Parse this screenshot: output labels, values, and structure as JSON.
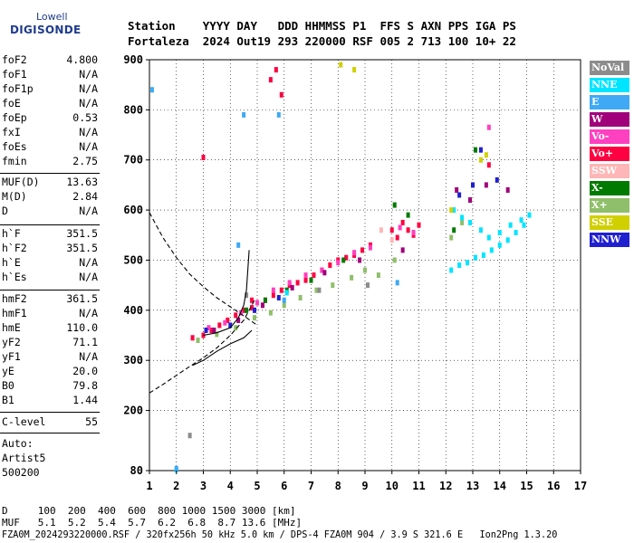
{
  "logo": {
    "brand_top": "Lowell",
    "brand_main": "DIGISONDE"
  },
  "header": {
    "row1": "Station    YYYY DAY   DDD HHMMSS P1  FFS S AXN PPS IGA PS",
    "row2": "Fortaleza  2024 Out19 293 220000 RSF 005 2 713 100 10+ 22"
  },
  "params_group1": [
    {
      "name": "foF2",
      "value": "4.800"
    },
    {
      "name": "foF1",
      "value": "N/A"
    },
    {
      "name": "foF1p",
      "value": "N/A"
    },
    {
      "name": "foE",
      "value": "N/A"
    },
    {
      "name": "foEp",
      "value": "0.53"
    },
    {
      "name": "fxI",
      "value": "N/A"
    },
    {
      "name": "foEs",
      "value": "N/A"
    },
    {
      "name": "fmin",
      "value": "2.75"
    }
  ],
  "params_group2": [
    {
      "name": "MUF(D)",
      "value": "13.63"
    },
    {
      "name": "M(D)",
      "value": "2.84"
    },
    {
      "name": "D",
      "value": "N/A"
    }
  ],
  "params_group3": [
    {
      "name": "h`F",
      "value": "351.5"
    },
    {
      "name": "h`F2",
      "value": "351.5"
    },
    {
      "name": "h`E",
      "value": "N/A"
    },
    {
      "name": "h`Es",
      "value": "N/A"
    }
  ],
  "params_group4": [
    {
      "name": "hmF2",
      "value": "361.5"
    },
    {
      "name": "hmF1",
      "value": "N/A"
    },
    {
      "name": "hmE",
      "value": "110.0"
    },
    {
      "name": "yF2",
      "value": "71.1"
    },
    {
      "name": "yF1",
      "value": "N/A"
    },
    {
      "name": "yE",
      "value": "20.0"
    },
    {
      "name": "B0",
      "value": "79.8"
    },
    {
      "name": "B1",
      "value": "1.44"
    }
  ],
  "params_group5": [
    {
      "name": "C-level",
      "value": "55"
    }
  ],
  "autoscale": {
    "line1": "Auto:",
    "line2": "Artist5",
    "line3": "500200"
  },
  "legend": [
    {
      "label": "NoVal",
      "color": "#8c8c8c"
    },
    {
      "label": "NNE",
      "color": "#00e5ff"
    },
    {
      "label": "E",
      "color": "#3fa9f5"
    },
    {
      "label": "W",
      "color": "#a0007a"
    },
    {
      "label": "Vo-",
      "color": "#ff40c0"
    },
    {
      "label": "Vo+",
      "color": "#ff0040"
    },
    {
      "label": "SSW",
      "color": "#ffb6b6"
    },
    {
      "label": "X-",
      "color": "#007a00"
    },
    {
      "label": "X+",
      "color": "#8fbf6a"
    },
    {
      "label": "SSE",
      "color": "#d0d000"
    },
    {
      "label": "NNW",
      "color": "#2020d0"
    }
  ],
  "footer": {
    "line1": "D     100  200  400  600  800 1000 1500 3000 [km]",
    "line2": "MUF   5.1  5.2  5.4  5.7  6.2  6.8  8.7 13.6 [MHz]",
    "line3": "FZA0M_2024293220000.RSF / 320fx256h 50 kHz 5.0 km / DPS-4 FZA0M 904 / 3.9 S 321.6 E   Ion2Png 1.3.20"
  },
  "chart_data": {
    "type": "scatter",
    "title": "",
    "xlabel": "",
    "ylabel": "",
    "xlim": [
      1,
      17
    ],
    "ylim": [
      80,
      900
    ],
    "x_ticks": [
      1,
      2,
      3,
      4,
      5,
      6,
      7,
      8,
      9,
      10,
      11,
      12,
      13,
      14,
      15,
      16,
      17
    ],
    "y_ticks": [
      80,
      200,
      300,
      400,
      500,
      600,
      700,
      800,
      900
    ],
    "grid": true,
    "legend_position": "right",
    "series": [
      {
        "name": "Vo+",
        "color": "#ff0040",
        "x": [
          2.6,
          3.0,
          3.3,
          3.6,
          3.9,
          4.2,
          4.5,
          4.8,
          5.0,
          5.3,
          5.6,
          5.9,
          6.2,
          6.5,
          6.8,
          7.1,
          7.4,
          7.7,
          8.0,
          8.3,
          8.6,
          8.9,
          9.2,
          10.0,
          10.2,
          10.4,
          10.6,
          10.8,
          11.0,
          5.5,
          5.7,
          5.9,
          3.0,
          4.8,
          13.6
        ],
        "y": [
          345,
          350,
          360,
          370,
          380,
          390,
          400,
          405,
          415,
          420,
          430,
          440,
          450,
          455,
          460,
          470,
          480,
          490,
          500,
          505,
          510,
          520,
          530,
          560,
          545,
          575,
          560,
          550,
          570,
          860,
          880,
          830,
          705,
          420,
          690
        ]
      },
      {
        "name": "Vo-",
        "color": "#ff40c0",
        "x": [
          3.2,
          3.8,
          4.4,
          5.0,
          5.6,
          6.2,
          6.8,
          7.4,
          8.0,
          8.6,
          9.2,
          10.3,
          10.8,
          13.6
        ],
        "y": [
          365,
          375,
          395,
          415,
          440,
          455,
          470,
          480,
          495,
          515,
          525,
          565,
          555,
          765
        ]
      },
      {
        "name": "X+",
        "color": "#8fbf6a",
        "x": [
          2.8,
          3.5,
          4.2,
          4.9,
          5.5,
          6.0,
          6.6,
          7.2,
          7.8,
          8.5,
          9.0,
          9.5,
          10.1,
          12.2,
          12.6
        ],
        "y": [
          340,
          352,
          365,
          385,
          395,
          410,
          425,
          440,
          450,
          465,
          480,
          470,
          500,
          545,
          575
        ]
      },
      {
        "name": "X-",
        "color": "#007a00",
        "x": [
          4.6,
          5.3,
          6.1,
          7.0,
          8.2,
          10.1,
          10.6,
          12.3,
          13.1
        ],
        "y": [
          400,
          420,
          440,
          460,
          500,
          610,
          590,
          560,
          720
        ]
      },
      {
        "name": "W",
        "color": "#a0007a",
        "x": [
          3.4,
          4.3,
          5.2,
          6.3,
          7.5,
          8.8,
          10.4,
          12.4,
          12.9,
          13.5,
          14.3
        ],
        "y": [
          360,
          380,
          410,
          445,
          475,
          500,
          520,
          640,
          620,
          650,
          640
        ]
      },
      {
        "name": "NNW",
        "color": "#2020d0",
        "x": [
          3.1,
          4.0,
          4.9,
          5.8,
          12.5,
          13.0,
          13.3,
          13.9
        ],
        "y": [
          360,
          370,
          400,
          425,
          630,
          650,
          720,
          660
        ]
      },
      {
        "name": "NNE",
        "color": "#00e5ff",
        "x": [
          12.2,
          12.5,
          12.8,
          13.1,
          13.4,
          13.7,
          14.0,
          14.3,
          14.6,
          14.9,
          15.1,
          12.3,
          12.6,
          12.9,
          13.3,
          13.6,
          14.0,
          14.4,
          14.8,
          2.0,
          6.1
        ],
        "y": [
          480,
          490,
          495,
          505,
          510,
          520,
          530,
          540,
          555,
          570,
          590,
          600,
          585,
          575,
          560,
          545,
          555,
          570,
          580,
          82,
          435
        ]
      },
      {
        "name": "E",
        "color": "#3fa9f5",
        "x": [
          2.0,
          4.3,
          5.8,
          10.2,
          1.1,
          4.5,
          6.0
        ],
        "y": [
          84,
          530,
          790,
          455,
          840,
          790,
          420
        ]
      },
      {
        "name": "SSE",
        "color": "#d0d000",
        "x": [
          8.1,
          8.6,
          12.2,
          13.3,
          13.5
        ],
        "y": [
          890,
          880,
          600,
          700,
          710
        ]
      },
      {
        "name": "SSW",
        "color": "#ffb6b6",
        "x": [
          9.6,
          10.0
        ],
        "y": [
          560,
          540
        ]
      },
      {
        "name": "NoVal",
        "color": "#8c8c8c",
        "x": [
          2.5,
          4.6,
          7.3,
          9.1
        ],
        "y": [
          150,
          430,
          440,
          450
        ]
      }
    ],
    "curves": [
      {
        "style": "solid",
        "x": [
          2.6,
          3.0,
          3.5,
          4.0,
          4.5,
          4.8
        ],
        "y": [
          290,
          300,
          318,
          333,
          345,
          360
        ]
      },
      {
        "style": "solid",
        "x": [
          3.0,
          3.5,
          4.0,
          4.3,
          4.5,
          4.6,
          4.65,
          4.7
        ],
        "y": [
          350,
          355,
          365,
          385,
          410,
          440,
          480,
          520
        ]
      },
      {
        "style": "dashed",
        "x": [
          1.0,
          1.5,
          2.0,
          2.5,
          3.0,
          3.5,
          4.0,
          4.5,
          4.9
        ],
        "y": [
          235,
          252,
          270,
          288,
          305,
          325,
          350,
          380,
          420
        ]
      },
      {
        "style": "dashed",
        "x": [
          1.0,
          1.2,
          1.5,
          2.0,
          2.5,
          3.0,
          3.5,
          4.0,
          4.6,
          5.0
        ],
        "y": [
          595,
          575,
          545,
          505,
          472,
          447,
          425,
          407,
          385,
          370
        ]
      }
    ]
  }
}
